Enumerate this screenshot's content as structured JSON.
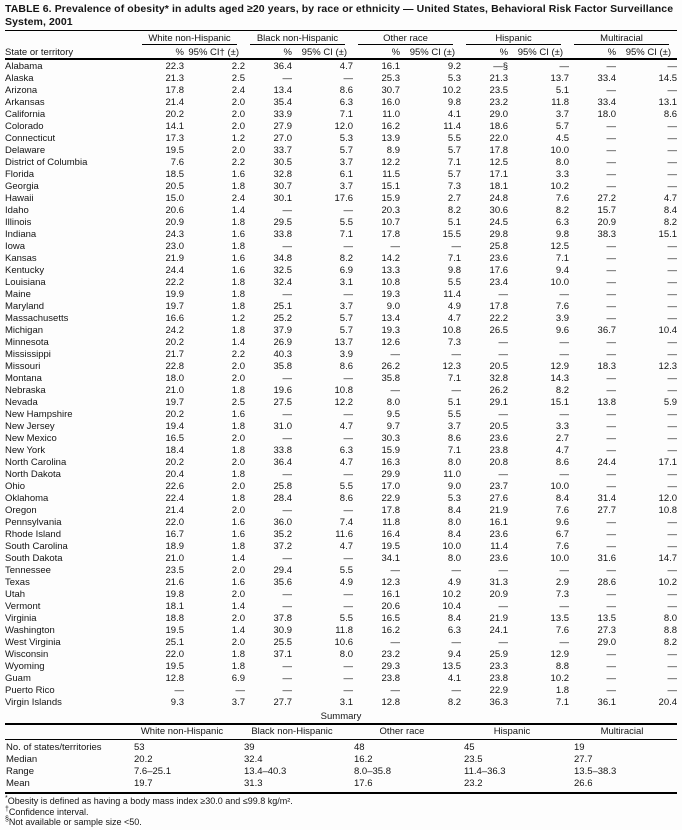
{
  "title": "TABLE 6. Prevalence of obesity* in adults aged ≥20 years, by race or ethnicity — United States, Behavioral Risk Factor Surveillance System, 2001",
  "table": {
    "row_header": "State or territory",
    "groups": [
      {
        "label": "White non-Hispanic",
        "pct_header": "%",
        "ci_header": "95% CI† (±)"
      },
      {
        "label": "Black non-Hispanic",
        "pct_header": "%",
        "ci_header": "95% CI (±)"
      },
      {
        "label": "Other race",
        "pct_header": "%",
        "ci_header": "95% CI (±)"
      },
      {
        "label": "Hispanic",
        "pct_header": "%",
        "ci_header": "95% CI (±)"
      },
      {
        "label": "Multiracial",
        "pct_header": "%",
        "ci_header": "95% CI (±)"
      }
    ],
    "rows": [
      {
        "state": "Alabama",
        "values": [
          "22.3",
          "2.2",
          "36.4",
          "4.7",
          "16.1",
          "9.2",
          "—§",
          "—",
          "—",
          "—"
        ]
      },
      {
        "state": "Alaska",
        "values": [
          "21.3",
          "2.5",
          "—",
          "—",
          "25.3",
          "5.3",
          "21.3",
          "13.7",
          "33.4",
          "14.5"
        ]
      },
      {
        "state": "Arizona",
        "values": [
          "17.8",
          "2.4",
          "13.4",
          "8.6",
          "30.7",
          "10.2",
          "23.5",
          "5.1",
          "—",
          "—"
        ]
      },
      {
        "state": "Arkansas",
        "values": [
          "21.4",
          "2.0",
          "35.4",
          "6.3",
          "16.0",
          "9.8",
          "23.2",
          "11.8",
          "33.4",
          "13.1"
        ]
      },
      {
        "state": "California",
        "values": [
          "20.2",
          "2.0",
          "33.9",
          "7.1",
          "11.0",
          "4.1",
          "29.0",
          "3.7",
          "18.0",
          "8.6"
        ]
      },
      {
        "state": "Colorado",
        "values": [
          "14.1",
          "2.0",
          "27.9",
          "12.0",
          "16.2",
          "11.4",
          "18.6",
          "5.7",
          "—",
          "—"
        ]
      },
      {
        "state": "Connecticut",
        "values": [
          "17.3",
          "1.2",
          "27.0",
          "5.3",
          "13.9",
          "5.5",
          "22.0",
          "4.5",
          "—",
          "—"
        ]
      },
      {
        "state": "Delaware",
        "values": [
          "19.5",
          "2.0",
          "33.7",
          "5.7",
          "8.9",
          "5.7",
          "17.8",
          "10.0",
          "—",
          "—"
        ]
      },
      {
        "state": "District of Columbia",
        "values": [
          "7.6",
          "2.2",
          "30.5",
          "3.7",
          "12.2",
          "7.1",
          "12.5",
          "8.0",
          "—",
          "—"
        ]
      },
      {
        "state": "Florida",
        "values": [
          "18.5",
          "1.6",
          "32.8",
          "6.1",
          "11.5",
          "5.7",
          "17.1",
          "3.3",
          "—",
          "—"
        ]
      },
      {
        "state": "Georgia",
        "values": [
          "20.5",
          "1.8",
          "30.7",
          "3.7",
          "15.1",
          "7.3",
          "18.1",
          "10.2",
          "—",
          "—"
        ]
      },
      {
        "state": "Hawaii",
        "values": [
          "15.0",
          "2.4",
          "30.1",
          "17.6",
          "15.9",
          "2.7",
          "24.8",
          "7.6",
          "27.2",
          "4.7"
        ]
      },
      {
        "state": "Idaho",
        "values": [
          "20.6",
          "1.4",
          "—",
          "—",
          "20.3",
          "8.2",
          "30.6",
          "8.2",
          "15.7",
          "8.4"
        ]
      },
      {
        "state": "Illinois",
        "values": [
          "20.9",
          "1.8",
          "29.5",
          "5.5",
          "10.7",
          "5.1",
          "24.5",
          "6.3",
          "20.9",
          "8.2"
        ]
      },
      {
        "state": "Indiana",
        "values": [
          "24.3",
          "1.6",
          "33.8",
          "7.1",
          "17.8",
          "15.5",
          "29.8",
          "9.8",
          "38.3",
          "15.1"
        ]
      },
      {
        "state": "Iowa",
        "values": [
          "23.0",
          "1.8",
          "—",
          "—",
          "—",
          "—",
          "25.8",
          "12.5",
          "—",
          "—"
        ]
      },
      {
        "state": "Kansas",
        "values": [
          "21.9",
          "1.6",
          "34.8",
          "8.2",
          "14.2",
          "7.1",
          "23.6",
          "7.1",
          "—",
          "—"
        ]
      },
      {
        "state": "Kentucky",
        "values": [
          "24.4",
          "1.6",
          "32.5",
          "6.9",
          "13.3",
          "9.8",
          "17.6",
          "9.4",
          "—",
          "—"
        ]
      },
      {
        "state": "Louisiana",
        "values": [
          "22.2",
          "1.8",
          "32.4",
          "3.1",
          "10.8",
          "5.5",
          "23.4",
          "10.0",
          "—",
          "—"
        ]
      },
      {
        "state": "Maine",
        "values": [
          "19.9",
          "1.8",
          "—",
          "—",
          "19.3",
          "11.4",
          "—",
          "—",
          "—",
          "—"
        ]
      },
      {
        "state": "Maryland",
        "values": [
          "19.7",
          "1.8",
          "25.1",
          "3.7",
          "9.0",
          "4.9",
          "17.8",
          "7.6",
          "—",
          "—"
        ]
      },
      {
        "state": "Massachusetts",
        "values": [
          "16.6",
          "1.2",
          "25.2",
          "5.7",
          "13.4",
          "4.7",
          "22.2",
          "3.9",
          "—",
          "—"
        ]
      },
      {
        "state": "Michigan",
        "values": [
          "24.2",
          "1.8",
          "37.9",
          "5.7",
          "19.3",
          "10.8",
          "26.5",
          "9.6",
          "36.7",
          "10.4"
        ]
      },
      {
        "state": "Minnesota",
        "values": [
          "20.2",
          "1.4",
          "26.9",
          "13.7",
          "12.6",
          "7.3",
          "—",
          "—",
          "—",
          "—"
        ]
      },
      {
        "state": "Mississippi",
        "values": [
          "21.7",
          "2.2",
          "40.3",
          "3.9",
          "—",
          "—",
          "—",
          "—",
          "—",
          "—"
        ]
      },
      {
        "state": "Missouri",
        "values": [
          "22.8",
          "2.0",
          "35.8",
          "8.6",
          "26.2",
          "12.3",
          "20.5",
          "12.9",
          "18.3",
          "12.3"
        ]
      },
      {
        "state": "Montana",
        "values": [
          "18.0",
          "2.0",
          "—",
          "—",
          "35.8",
          "7.1",
          "32.8",
          "14.3",
          "—",
          "—"
        ]
      },
      {
        "state": "Nebraska",
        "values": [
          "21.0",
          "1.8",
          "19.6",
          "10.8",
          "—",
          "—",
          "26.2",
          "8.2",
          "—",
          "—"
        ]
      },
      {
        "state": "Nevada",
        "values": [
          "19.7",
          "2.5",
          "27.5",
          "12.2",
          "8.0",
          "5.1",
          "29.1",
          "15.1",
          "13.8",
          "5.9"
        ]
      },
      {
        "state": "New Hampshire",
        "values": [
          "20.2",
          "1.6",
          "—",
          "—",
          "9.5",
          "5.5",
          "—",
          "—",
          "—",
          "—"
        ]
      },
      {
        "state": "New Jersey",
        "values": [
          "19.4",
          "1.8",
          "31.0",
          "4.7",
          "9.7",
          "3.7",
          "20.5",
          "3.3",
          "—",
          "—"
        ]
      },
      {
        "state": "New Mexico",
        "values": [
          "16.5",
          "2.0",
          "—",
          "—",
          "30.3",
          "8.6",
          "23.6",
          "2.7",
          "—",
          "—"
        ]
      },
      {
        "state": "New York",
        "values": [
          "18.4",
          "1.8",
          "33.8",
          "6.3",
          "15.9",
          "7.1",
          "23.8",
          "4.7",
          "—",
          "—"
        ]
      },
      {
        "state": "North Carolina",
        "values": [
          "20.2",
          "2.0",
          "36.4",
          "4.7",
          "16.3",
          "8.0",
          "20.8",
          "8.6",
          "24.4",
          "17.1"
        ]
      },
      {
        "state": "North Dakota",
        "values": [
          "20.4",
          "1.8",
          "—",
          "—",
          "29.9",
          "11.0",
          "—",
          "—",
          "—",
          "—"
        ]
      },
      {
        "state": "Ohio",
        "values": [
          "22.6",
          "2.0",
          "25.8",
          "5.5",
          "17.0",
          "9.0",
          "23.7",
          "10.0",
          "—",
          "—"
        ]
      },
      {
        "state": "Oklahoma",
        "values": [
          "22.4",
          "1.8",
          "28.4",
          "8.6",
          "22.9",
          "5.3",
          "27.6",
          "8.4",
          "31.4",
          "12.0"
        ]
      },
      {
        "state": "Oregon",
        "values": [
          "21.4",
          "2.0",
          "—",
          "—",
          "17.8",
          "8.4",
          "21.9",
          "7.6",
          "27.7",
          "10.8"
        ]
      },
      {
        "state": "Pennsylvania",
        "values": [
          "22.0",
          "1.6",
          "36.0",
          "7.4",
          "11.8",
          "8.0",
          "16.1",
          "9.6",
          "—",
          "—"
        ]
      },
      {
        "state": "Rhode Island",
        "values": [
          "16.7",
          "1.6",
          "35.2",
          "11.6",
          "16.4",
          "8.4",
          "23.6",
          "6.7",
          "—",
          "—"
        ]
      },
      {
        "state": "South Carolina",
        "values": [
          "18.9",
          "1.8",
          "37.2",
          "4.7",
          "19.5",
          "10.0",
          "11.4",
          "7.6",
          "—",
          "—"
        ]
      },
      {
        "state": "South Dakota",
        "values": [
          "21.0",
          "1.4",
          "—",
          "—",
          "34.1",
          "8.0",
          "23.6",
          "10.0",
          "31.6",
          "14.7"
        ]
      },
      {
        "state": "Tennessee",
        "values": [
          "23.5",
          "2.0",
          "29.4",
          "5.5",
          "—",
          "—",
          "—",
          "—",
          "—",
          "—"
        ]
      },
      {
        "state": "Texas",
        "values": [
          "21.6",
          "1.6",
          "35.6",
          "4.9",
          "12.3",
          "4.9",
          "31.3",
          "2.9",
          "28.6",
          "10.2"
        ]
      },
      {
        "state": "Utah",
        "values": [
          "19.8",
          "2.0",
          "—",
          "—",
          "16.1",
          "10.2",
          "20.9",
          "7.3",
          "—",
          "—"
        ]
      },
      {
        "state": "Vermont",
        "values": [
          "18.1",
          "1.4",
          "—",
          "—",
          "20.6",
          "10.4",
          "—",
          "—",
          "—",
          "—"
        ]
      },
      {
        "state": "Virginia",
        "values": [
          "18.8",
          "2.0",
          "37.8",
          "5.5",
          "16.5",
          "8.4",
          "21.9",
          "13.5",
          "13.5",
          "8.0"
        ]
      },
      {
        "state": "Washington",
        "values": [
          "19.5",
          "1.4",
          "30.9",
          "11.8",
          "16.2",
          "6.3",
          "24.1",
          "7.6",
          "27.3",
          "8.8"
        ]
      },
      {
        "state": "West Virginia",
        "values": [
          "25.1",
          "2.0",
          "25.5",
          "10.6",
          "—",
          "—",
          "—",
          "—",
          "29.0",
          "8.2"
        ]
      },
      {
        "state": "Wisconsin",
        "values": [
          "22.0",
          "1.8",
          "37.1",
          "8.0",
          "23.2",
          "9.4",
          "25.9",
          "12.9",
          "—",
          "—"
        ]
      },
      {
        "state": "Wyoming",
        "values": [
          "19.5",
          "1.8",
          "—",
          "—",
          "29.3",
          "13.5",
          "23.3",
          "8.8",
          "—",
          "—"
        ]
      },
      {
        "state": "Guam",
        "values": [
          "12.8",
          "6.9",
          "—",
          "—",
          "23.8",
          "4.1",
          "23.8",
          "10.2",
          "—",
          "—"
        ]
      },
      {
        "state": "Puerto Rico",
        "values": [
          "—",
          "—",
          "—",
          "—",
          "—",
          "—",
          "22.9",
          "1.8",
          "—",
          "—"
        ]
      },
      {
        "state": "Virgin Islands",
        "values": [
          "9.3",
          "3.7",
          "27.7",
          "3.1",
          "12.8",
          "8.2",
          "36.3",
          "7.1",
          "36.1",
          "20.4"
        ]
      }
    ]
  },
  "summary": {
    "heading": "Summary",
    "columns": [
      "White non-Hispanic",
      "Black non-Hispanic",
      "Other race",
      "Hispanic",
      "Multiracial"
    ],
    "rows": [
      {
        "label": "No. of states/territories",
        "values": [
          "53",
          "39",
          "48",
          "45",
          "19"
        ]
      },
      {
        "label": "Median",
        "values": [
          "20.2",
          "32.4",
          "16.2",
          "23.5",
          "27.7"
        ]
      },
      {
        "label": "Range",
        "values": [
          "7.6–25.1",
          "13.4–40.3",
          "8.0–35.8",
          "11.4–36.3",
          "13.5–38.3"
        ]
      },
      {
        "label": "Mean",
        "values": [
          "19.7",
          "31.3",
          "17.6",
          "23.2",
          "26.6"
        ]
      }
    ]
  },
  "footnotes": [
    {
      "symbol": "*",
      "text": "Obesity is defined as having a body mass index ≥30.0 and ≤99.8 kg/m²."
    },
    {
      "symbol": "†",
      "text": "Confidence interval."
    },
    {
      "symbol": "§",
      "text": "Not available or sample size <50."
    }
  ]
}
